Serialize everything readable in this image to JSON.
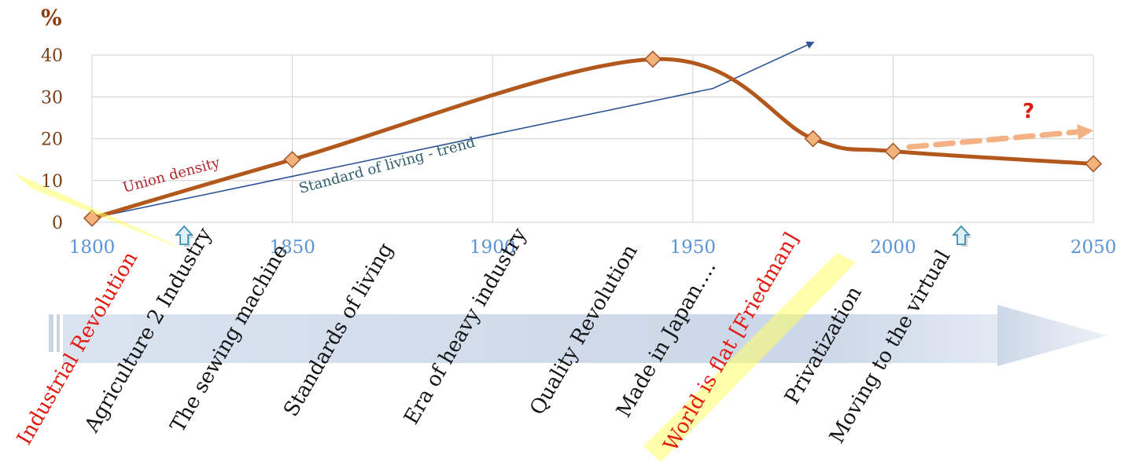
{
  "chart_data": {
    "type": "line",
    "ylabel": "%",
    "xlim": [
      1800,
      2050
    ],
    "ylim": [
      0,
      40
    ],
    "x_ticks": [
      "1800",
      "1850",
      "1900",
      "1950",
      "2000",
      "2050"
    ],
    "y_ticks": [
      "0",
      "10",
      "20",
      "30",
      "40"
    ],
    "grid": true,
    "series": [
      {
        "name": "Union density",
        "color": "#b2581d",
        "points": [
          {
            "x": 1800,
            "y": 1
          },
          {
            "x": 1850,
            "y": 15
          },
          {
            "x": 1940,
            "y": 39
          },
          {
            "x": 1980,
            "y": 20
          },
          {
            "x": 2000,
            "y": 17
          },
          {
            "x": 2050,
            "y": 14
          }
        ]
      },
      {
        "name": "Standard of living - trend",
        "color": "#2f5597",
        "points": [
          {
            "x": 1800,
            "y": 1
          },
          {
            "x": 1955,
            "y": 32
          },
          {
            "x": 1980,
            "y": 43
          }
        ]
      }
    ],
    "projection": {
      "color": "#f4b183",
      "points": [
        {
          "x": 2004,
          "y": 18
        },
        {
          "x": 2050,
          "y": 22
        }
      ],
      "label": "?"
    },
    "markers": [
      {
        "x": 1823,
        "name": "up-arrow-1823"
      },
      {
        "x": 2017,
        "name": "up-arrow-2017"
      }
    ],
    "eras": [
      {
        "label": "Industrial Revolution",
        "highlight": true
      },
      {
        "label": "Agriculture 2 Industry",
        "highlight": false
      },
      {
        "label": "The sewing machine",
        "highlight": false
      },
      {
        "label": "Standards of living",
        "highlight": false
      },
      {
        "label": "Era of heavy industry",
        "highlight": false
      },
      {
        "label": "Quality Revolution",
        "highlight": false
      },
      {
        "label": "Made in Japan….",
        "highlight": false
      },
      {
        "label": "World is flat [Friedman]",
        "highlight": true
      },
      {
        "label": "Privatization",
        "highlight": false
      },
      {
        "label": "Moving to the virtual",
        "highlight": false
      }
    ]
  },
  "colors": {
    "axis_tick_y": "#7a3c12",
    "axis_tick_x": "#5b93d8",
    "grid": "#d9d9d9",
    "highlight": "#ffff66",
    "era_text": "#141414",
    "era_text_highlight": "#e21b12",
    "timeline_arrow": "#c9d5e6",
    "marker_fill": "#f3b27a",
    "marker_stroke": "#a0522d"
  }
}
